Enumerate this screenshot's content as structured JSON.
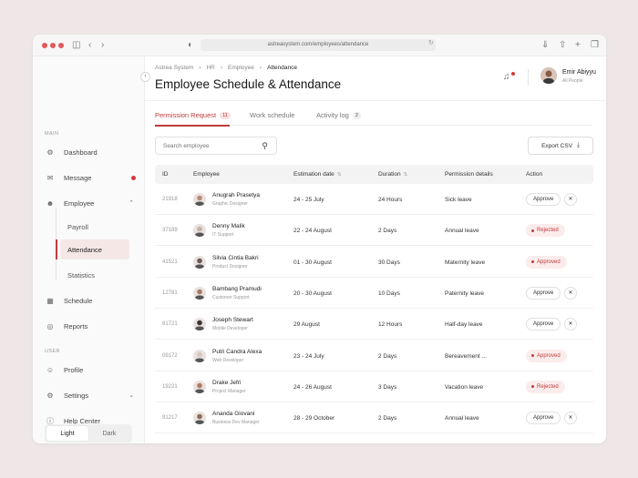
{
  "browser": {
    "url": "astreasystem.com/employees/attendance"
  },
  "colors": {
    "accent": "#c23b3b",
    "badge": "#d23a3a",
    "pill_bg": "#fbecec"
  },
  "sidebar": {
    "section_main": "MAIN",
    "section_user": "USER",
    "items": {
      "dashboard": {
        "label": "Dashboard",
        "icon": "dashboard-icon"
      },
      "message": {
        "label": "Message",
        "icon": "message-icon"
      },
      "employee": {
        "label": "Employee",
        "icon": "users-icon"
      },
      "payroll": {
        "label": "Payroll"
      },
      "attendance": {
        "label": "Attendance"
      },
      "statistics": {
        "label": "Statistics"
      },
      "schedule": {
        "label": "Schedule",
        "icon": "calendar-icon"
      },
      "reports": {
        "label": "Reports",
        "icon": "reports-icon"
      },
      "profile": {
        "label": "Profile",
        "icon": "profile-icon"
      },
      "settings": {
        "label": "Settings",
        "icon": "gear-icon"
      },
      "help": {
        "label": "Help Center",
        "icon": "help-icon"
      }
    },
    "theme": {
      "light": "Light",
      "dark": "Dark"
    }
  },
  "header": {
    "breadcrumb": [
      "Astrea System",
      "HR",
      "Employee",
      "Attendance"
    ],
    "title": "Employee Schedule & Attendance",
    "user": {
      "name": "Emir Abiyyu",
      "role": "All People"
    }
  },
  "tabs": [
    {
      "label": "Permission Request",
      "count": "11"
    },
    {
      "label": "Work schedule",
      "count": ""
    },
    {
      "label": "Activity log",
      "count": "2"
    }
  ],
  "search": {
    "placeholder": "Search employee"
  },
  "export": {
    "label": "Export CSV"
  },
  "table": {
    "headers": {
      "id": "ID",
      "employee": "Employee",
      "estimation": "Estimation date",
      "duration": "Duration",
      "details": "Permission details",
      "action": "Action"
    },
    "approve_label": "Approve",
    "rows": [
      {
        "id": "21918",
        "name": "Anugrah Prasetya",
        "role": "Graphic Designer",
        "est": "24 - 25 July",
        "dur": "24 Hours",
        "perm": "Sick leave",
        "action": "pending"
      },
      {
        "id": "37189",
        "name": "Denny Malik",
        "role": "IT Support",
        "est": "22 - 24 August",
        "dur": "2 Days",
        "perm": "Annual leave",
        "action": "Rejected"
      },
      {
        "id": "41521",
        "name": "Silvia Cintia Bakri",
        "role": "Product Designer",
        "est": "01 - 30 August",
        "dur": "30 Days",
        "perm": "Maternity leave",
        "action": "Approved"
      },
      {
        "id": "12781",
        "name": "Bambang Pramudi",
        "role": "Customer Support",
        "est": "20 - 30 August",
        "dur": "10 Days",
        "perm": "Paternity leave",
        "action": "pending"
      },
      {
        "id": "81721",
        "name": "Joseph Stewart",
        "role": "Mobile Developer",
        "est": "29 August",
        "dur": "12 Hours",
        "perm": "Half-day leave",
        "action": "pending"
      },
      {
        "id": "09172",
        "name": "Putri Candra Alexa",
        "role": "Web Developer",
        "est": "23 - 24 July",
        "dur": "2 Days",
        "perm": "Bereavement ...",
        "action": "Approved"
      },
      {
        "id": "19221",
        "name": "Drake Jefri",
        "role": "Project Manager",
        "est": "24 - 26 August",
        "dur": "3 Days",
        "perm": "Vacation leave",
        "action": "Rejected"
      },
      {
        "id": "91217",
        "name": "Ananda Giovani",
        "role": "Business Dev Manager",
        "est": "28 - 29 October",
        "dur": "2 Days",
        "perm": "Annual leave",
        "action": "pending"
      }
    ]
  }
}
